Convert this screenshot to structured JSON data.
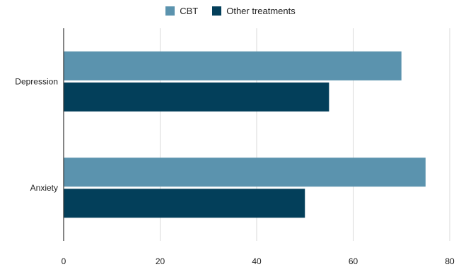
{
  "chart_data": {
    "type": "bar",
    "orientation": "horizontal",
    "categories": [
      "Depression",
      "Anxiety"
    ],
    "series": [
      {
        "name": "CBT",
        "values": [
          70,
          75
        ],
        "color": "#5b93ae"
      },
      {
        "name": "Other treatments",
        "values": [
          55,
          50
        ],
        "color": "#033f5a"
      }
    ],
    "xlim": [
      0,
      80
    ],
    "xticks": [
      0,
      20,
      40,
      60,
      80
    ],
    "grid": true,
    "legend_position": "top-center",
    "title": "",
    "xlabel": "",
    "ylabel": ""
  }
}
